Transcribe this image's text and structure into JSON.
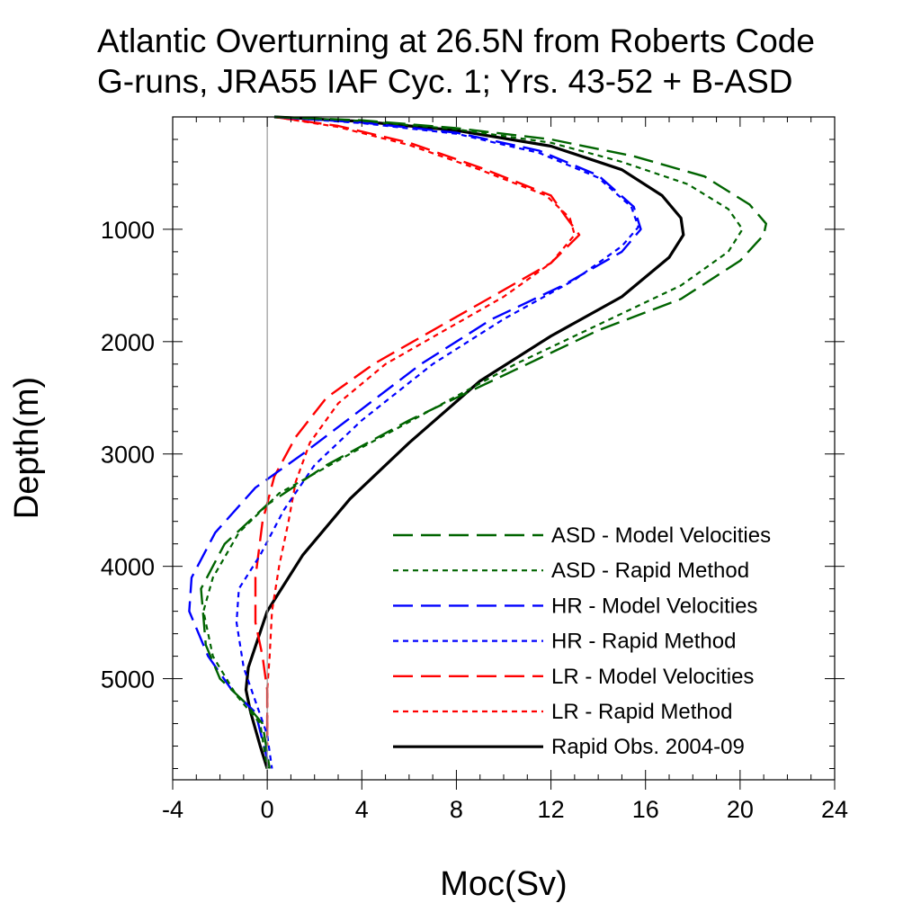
{
  "chart_data": {
    "type": "line",
    "title_lines": [
      "Atlantic Overturning at 26.5N from Roberts Code",
      "G-runs, JRA55 IAF Cyc. 1; Yrs. 43-52 + B-ASD"
    ],
    "xlabel": "Moc(Sv)",
    "ylabel": "Depth(m)",
    "xlim": [
      -4,
      24
    ],
    "ylim": [
      5900,
      0
    ],
    "y_inverted": true,
    "x_ticks": [
      -4,
      0,
      4,
      8,
      12,
      16,
      20,
      24
    ],
    "x_tick_labels": [
      "-4",
      "0",
      "4",
      "8",
      "12",
      "16",
      "20",
      "24"
    ],
    "y_ticks": [
      1000,
      2000,
      3000,
      4000,
      5000
    ],
    "y_tick_labels": [
      "1000",
      "2000",
      "3000",
      "4000",
      "5000"
    ],
    "zero_line": true,
    "grid": false,
    "legend_position": "bottom-right",
    "series": [
      {
        "name": "ASD - Model Velocities",
        "color": "#006400",
        "dash": "long-dash",
        "points": [
          [
            0.3,
            0
          ],
          [
            4,
            30
          ],
          [
            8,
            100
          ],
          [
            12,
            200
          ],
          [
            15.5,
            350
          ],
          [
            18.5,
            530
          ],
          [
            20.4,
            780
          ],
          [
            21.1,
            950
          ],
          [
            21,
            1050
          ],
          [
            20,
            1280
          ],
          [
            17.5,
            1620
          ],
          [
            14,
            1900
          ],
          [
            10,
            2300
          ],
          [
            6,
            2700
          ],
          [
            2.5,
            3100
          ],
          [
            0,
            3450
          ],
          [
            -1.8,
            3800
          ],
          [
            -2.8,
            4200
          ],
          [
            -2.6,
            4700
          ],
          [
            -2,
            5000
          ],
          [
            -1,
            5200
          ],
          [
            -0.2,
            5400
          ],
          [
            0.1,
            5800
          ]
        ]
      },
      {
        "name": "ASD - Rapid Method",
        "color": "#006400",
        "dash": "short-dash",
        "points": [
          [
            0.3,
            0
          ],
          [
            4,
            35
          ],
          [
            8,
            110
          ],
          [
            12,
            230
          ],
          [
            15,
            400
          ],
          [
            17.8,
            600
          ],
          [
            19.5,
            820
          ],
          [
            20.1,
            1000
          ],
          [
            19.5,
            1200
          ],
          [
            17.5,
            1500
          ],
          [
            14,
            1850
          ],
          [
            10.5,
            2200
          ],
          [
            7,
            2600
          ],
          [
            3.5,
            3000
          ],
          [
            0.5,
            3350
          ],
          [
            -1.2,
            3700
          ],
          [
            -2.3,
            4100
          ],
          [
            -2.7,
            4400
          ],
          [
            -2.3,
            4800
          ],
          [
            -1.3,
            5150
          ],
          [
            -0.3,
            5400
          ],
          [
            0,
            5800
          ]
        ]
      },
      {
        "name": "HR - Model Velocities",
        "color": "#0000ff",
        "dash": "long-dash",
        "points": [
          [
            0.3,
            0
          ],
          [
            4,
            50
          ],
          [
            8,
            140
          ],
          [
            11.5,
            300
          ],
          [
            14,
            520
          ],
          [
            15.5,
            800
          ],
          [
            15.8,
            1000
          ],
          [
            15,
            1200
          ],
          [
            12.5,
            1500
          ],
          [
            9.5,
            1800
          ],
          [
            6.5,
            2200
          ],
          [
            4,
            2600
          ],
          [
            1.5,
            3000
          ],
          [
            -0.5,
            3300
          ],
          [
            -2.2,
            3700
          ],
          [
            -3.2,
            4100
          ],
          [
            -3.3,
            4400
          ],
          [
            -2.5,
            4800
          ],
          [
            -1.5,
            5100
          ],
          [
            -0.5,
            5300
          ],
          [
            0.1,
            5800
          ]
        ]
      },
      {
        "name": "HR - Rapid Method",
        "color": "#0000ff",
        "dash": "short-dash",
        "points": [
          [
            0.3,
            0
          ],
          [
            4,
            55
          ],
          [
            8,
            150
          ],
          [
            11.5,
            320
          ],
          [
            14,
            540
          ],
          [
            15.4,
            800
          ],
          [
            15.7,
            980
          ],
          [
            15,
            1150
          ],
          [
            13,
            1450
          ],
          [
            10,
            1800
          ],
          [
            7,
            2200
          ],
          [
            4,
            2700
          ],
          [
            2,
            3100
          ],
          [
            0.7,
            3500
          ],
          [
            -0.3,
            3900
          ],
          [
            -1.2,
            4200
          ],
          [
            -1.3,
            4500
          ],
          [
            -1,
            4900
          ],
          [
            -0.5,
            5200
          ],
          [
            0,
            5500
          ],
          [
            0.2,
            5800
          ]
        ]
      },
      {
        "name": "LR - Model Velocities",
        "color": "#ff0000",
        "dash": "long-dash",
        "points": [
          [
            0.3,
            0
          ],
          [
            3,
            80
          ],
          [
            6,
            230
          ],
          [
            9,
            450
          ],
          [
            12,
            700
          ],
          [
            12.6,
            880
          ],
          [
            13.2,
            1050
          ],
          [
            12,
            1300
          ],
          [
            9.5,
            1600
          ],
          [
            7,
            1900
          ],
          [
            4.5,
            2200
          ],
          [
            2.5,
            2500
          ],
          [
            1.2,
            2850
          ],
          [
            0.3,
            3200
          ],
          [
            -0.2,
            3600
          ],
          [
            -0.5,
            4100
          ],
          [
            -0.5,
            4500
          ],
          [
            -0.2,
            4800
          ],
          [
            0,
            5100
          ],
          [
            0,
            5600
          ]
        ]
      },
      {
        "name": "LR - Rapid Method",
        "color": "#ff0000",
        "dash": "short-dash",
        "points": [
          [
            0.3,
            0
          ],
          [
            3,
            90
          ],
          [
            6,
            250
          ],
          [
            9,
            470
          ],
          [
            11.8,
            700
          ],
          [
            12.8,
            900
          ],
          [
            13,
            1050
          ],
          [
            12,
            1300
          ],
          [
            10,
            1600
          ],
          [
            7.5,
            1900
          ],
          [
            5,
            2200
          ],
          [
            3,
            2550
          ],
          [
            1.8,
            2900
          ],
          [
            1.2,
            3250
          ],
          [
            0.9,
            3600
          ],
          [
            0.5,
            4000
          ],
          [
            0.2,
            4400
          ],
          [
            0.1,
            4800
          ],
          [
            0,
            5100
          ],
          [
            0,
            5600
          ]
        ]
      },
      {
        "name": "Rapid Obs. 2004-09",
        "color": "#000000",
        "dash": "solid",
        "points": [
          [
            0.3,
            0
          ],
          [
            4,
            40
          ],
          [
            8,
            120
          ],
          [
            12,
            260
          ],
          [
            15,
            470
          ],
          [
            16.7,
            700
          ],
          [
            17.5,
            900
          ],
          [
            17.6,
            1050
          ],
          [
            17,
            1250
          ],
          [
            15,
            1600
          ],
          [
            12,
            1950
          ],
          [
            9,
            2350
          ],
          [
            6,
            2900
          ],
          [
            3.5,
            3400
          ],
          [
            1.5,
            3900
          ],
          [
            0,
            4400
          ],
          [
            -0.8,
            4900
          ],
          [
            -0.9,
            5100
          ],
          [
            -0.7,
            5300
          ],
          [
            -0.3,
            5600
          ],
          [
            0,
            5800
          ]
        ]
      }
    ]
  }
}
